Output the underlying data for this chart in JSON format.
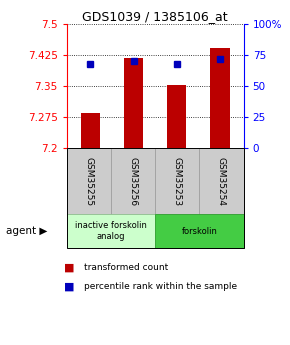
{
  "title": "GDS1039 / 1385106_at",
  "samples": [
    "GSM35255",
    "GSM35256",
    "GSM35253",
    "GSM35254"
  ],
  "bar_values": [
    7.285,
    7.418,
    7.352,
    7.443
  ],
  "percentile_values": [
    68,
    70,
    68,
    72
  ],
  "ylim_left": [
    7.2,
    7.5
  ],
  "ylim_right": [
    0,
    100
  ],
  "yticks_left": [
    7.2,
    7.275,
    7.35,
    7.425,
    7.5
  ],
  "ytick_labels_left": [
    "7.2",
    "7.275",
    "7.35",
    "7.425",
    "7.5"
  ],
  "yticks_right": [
    0,
    25,
    50,
    75,
    100
  ],
  "ytick_labels_right": [
    "0",
    "25",
    "50",
    "75",
    "100%"
  ],
  "bar_color": "#bb0000",
  "percentile_color": "#0000bb",
  "bar_width": 0.45,
  "agent_groups": [
    {
      "label": "inactive forskolin\nanalog",
      "samples": [
        0,
        1
      ],
      "color": "#ccffcc",
      "edge_color": "#88bb88"
    },
    {
      "label": "forskolin",
      "samples": [
        2,
        3
      ],
      "color": "#44cc44",
      "edge_color": "#229922"
    }
  ],
  "agent_label": "agent",
  "legend_bar_label": "transformed count",
  "legend_pct_label": "percentile rank within the sample",
  "bg_color": "#ffffff",
  "sample_box_color": "#cccccc",
  "sample_box_edge": "#999999"
}
